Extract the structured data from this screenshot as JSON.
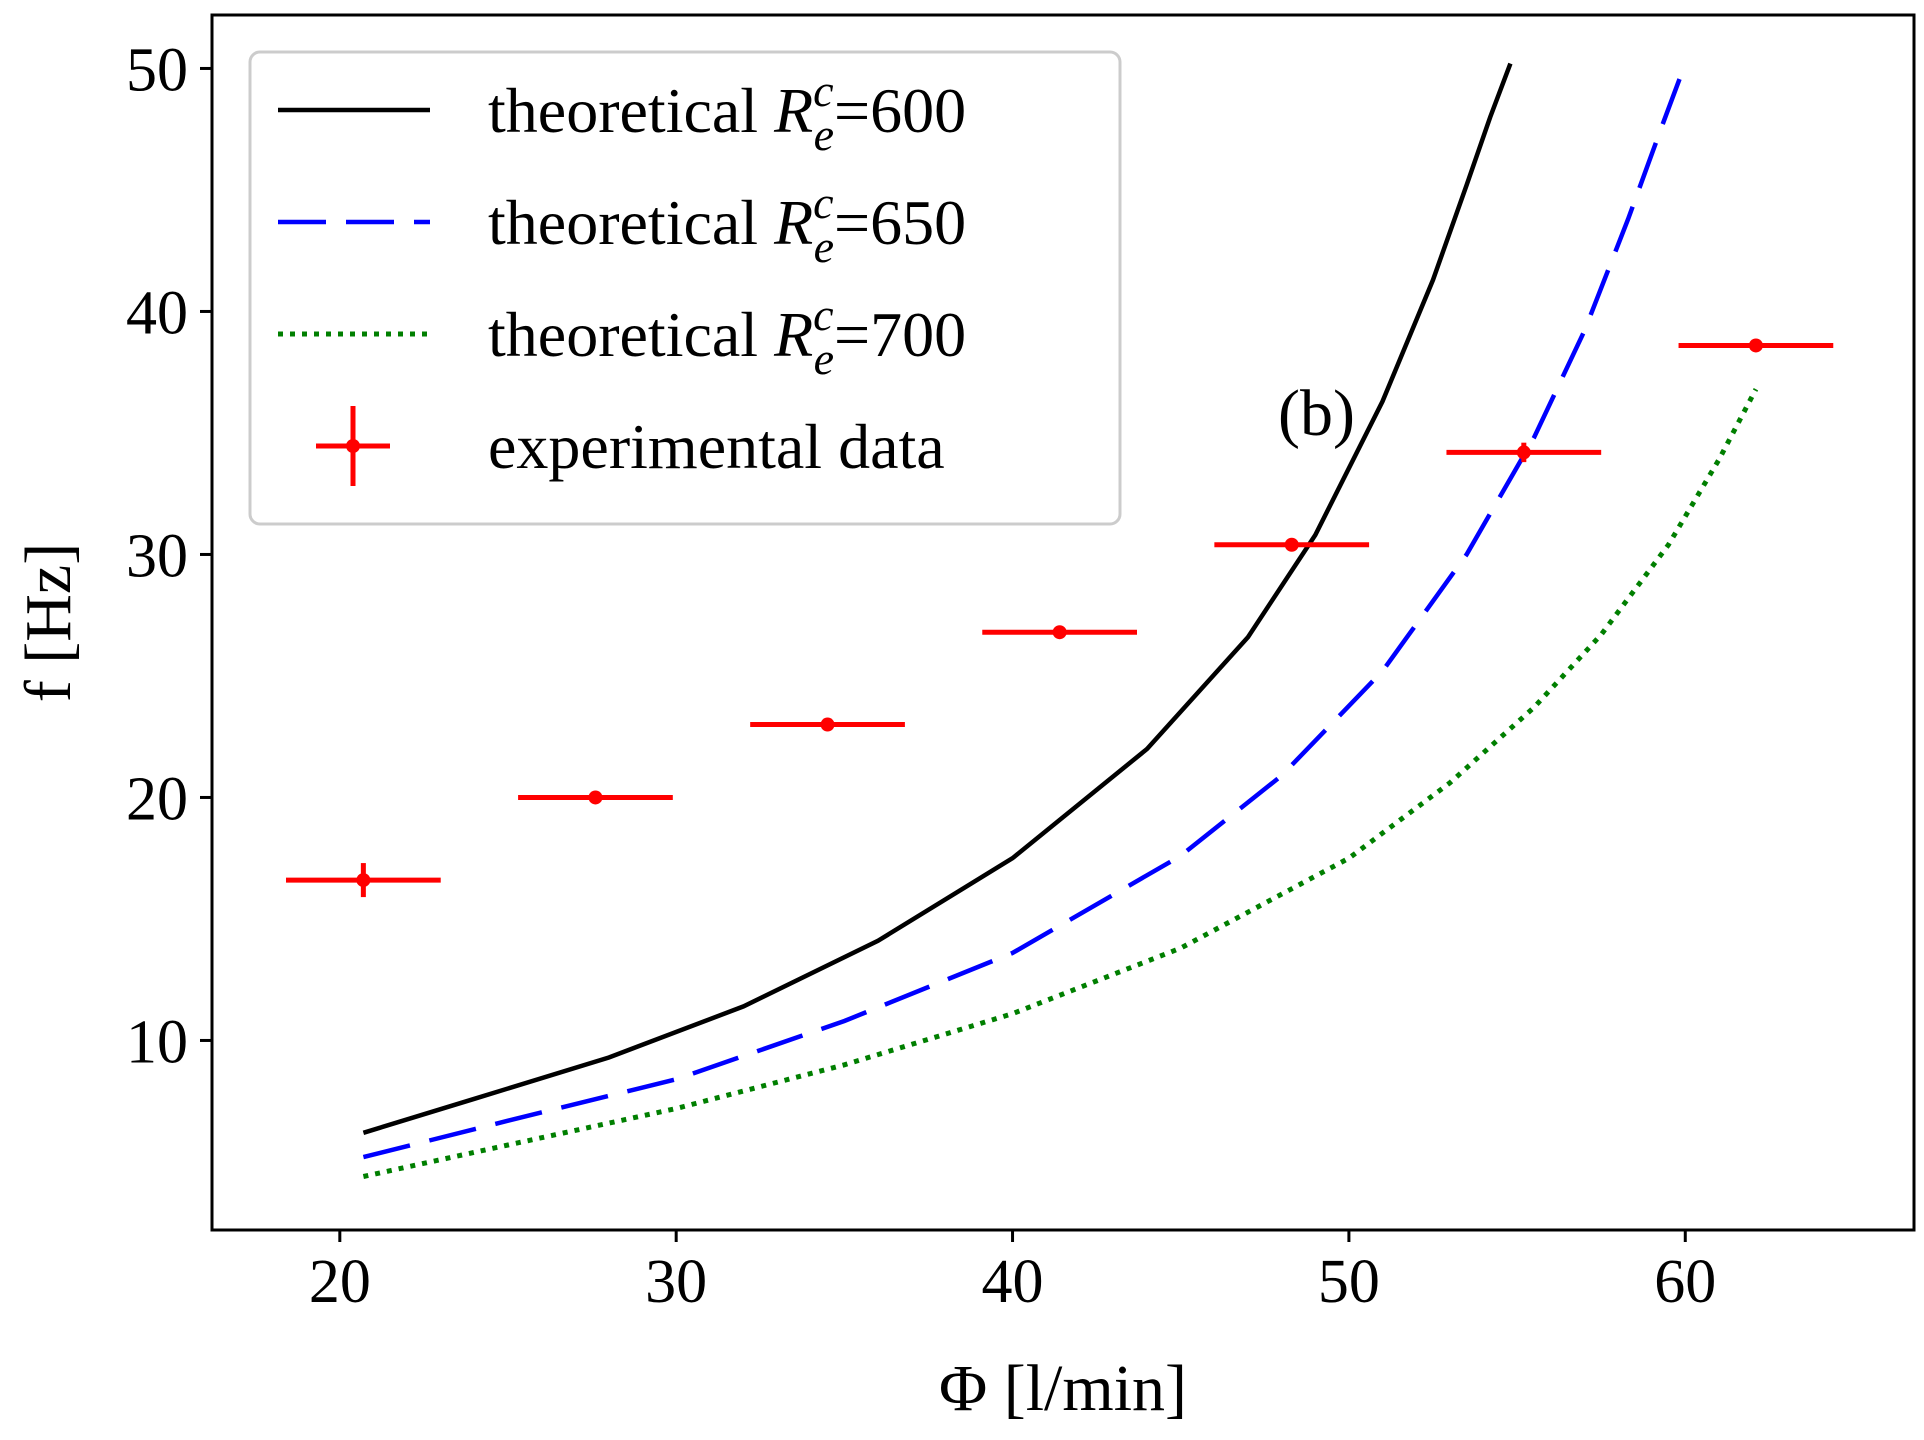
{
  "chart_data": {
    "type": "line",
    "title": "",
    "xlabel": "Φ [l/min]",
    "ylabel": "f [Hz]",
    "xlim": [
      16.2,
      66.8
    ],
    "ylim": [
      2.2,
      52.2
    ],
    "xticks": [
      20,
      30,
      40,
      50,
      60
    ],
    "yticks": [
      10,
      20,
      30,
      40,
      50
    ],
    "grid": false,
    "legend_position": "top-left",
    "annotation": "(b)",
    "colors": {
      "black": "#000000",
      "blue": "#0000ff",
      "green": "#007f00",
      "red": "#ff0000"
    },
    "series": [
      {
        "name": "theoretical R_e^c=600",
        "style": "solid",
        "color": "#000000",
        "x": [
          20.7,
          24,
          28,
          32,
          36,
          40,
          44,
          47,
          49,
          51,
          52.5,
          53.5,
          54.2,
          54.8
        ],
        "y": [
          6.2,
          7.6,
          9.3,
          11.4,
          14.1,
          17.5,
          22.0,
          26.6,
          30.8,
          36.3,
          41.3,
          45.2,
          48.0,
          50.2
        ]
      },
      {
        "name": "theoretical R_e^c=650",
        "style": "dashed",
        "color": "#0000ff",
        "x": [
          20.7,
          25,
          30,
          35,
          40,
          45,
          48,
          51,
          53.5,
          55.5,
          57,
          58.3,
          59.3,
          60.0
        ],
        "y": [
          5.2,
          6.7,
          8.4,
          10.8,
          13.6,
          17.6,
          20.9,
          25.2,
          30.0,
          34.8,
          39.2,
          43.8,
          47.6,
          50.2
        ]
      },
      {
        "name": "theoretical R_e^c=700",
        "style": "dotted",
        "color": "#007f00",
        "x": [
          20.7,
          25,
          30,
          35,
          40,
          45,
          50,
          53,
          55.5,
          57.5,
          59.5,
          61,
          62.1
        ],
        "y": [
          4.4,
          5.7,
          7.2,
          9.0,
          11.1,
          13.8,
          17.5,
          20.6,
          23.7,
          26.7,
          30.4,
          33.9,
          36.8
        ]
      }
    ],
    "experimental": {
      "name": "experimental data",
      "color": "#ff0000",
      "points": [
        {
          "x": 20.7,
          "y": 16.6,
          "xerr": 2.3,
          "yerr": 0.7
        },
        {
          "x": 27.6,
          "y": 20.0,
          "xerr": 2.3,
          "yerr": 0.2
        },
        {
          "x": 34.5,
          "y": 23.0,
          "xerr": 2.3,
          "yerr": 0.2
        },
        {
          "x": 41.4,
          "y": 26.8,
          "xerr": 2.3,
          "yerr": 0.2
        },
        {
          "x": 48.3,
          "y": 30.4,
          "xerr": 2.3,
          "yerr": 0.2
        },
        {
          "x": 55.2,
          "y": 34.2,
          "xerr": 2.3,
          "yerr": 0.4
        },
        {
          "x": 62.1,
          "y": 38.6,
          "xerr": 2.3,
          "yerr": 0.2
        }
      ]
    },
    "legend": [
      {
        "prefix": "theoretical ",
        "main": "R",
        "sup": "c",
        "sub": "e",
        "suffix": "=600"
      },
      {
        "prefix": "theoretical ",
        "main": "R",
        "sup": "c",
        "sub": "e",
        "suffix": "=650"
      },
      {
        "prefix": "theoretical ",
        "main": "R",
        "sup": "c",
        "sub": "e",
        "suffix": "=700"
      },
      {
        "text": "experimental data"
      }
    ]
  }
}
